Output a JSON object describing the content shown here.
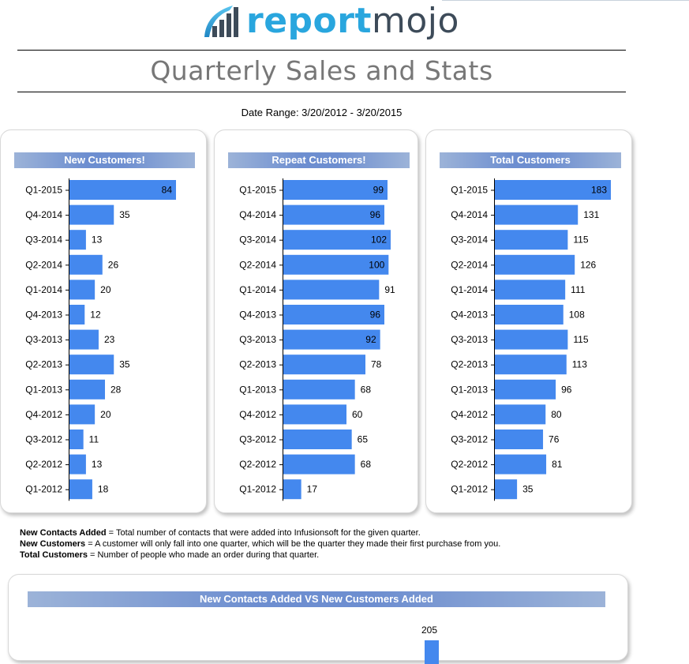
{
  "logo": {
    "text_report": "report",
    "text_mojo": "mojo",
    "brand_color": "#29a6de",
    "dark_color": "#3d4b59"
  },
  "page_title": "Quarterly Sales and Stats",
  "date_range": "Date Range:  3/20/2012 - 3/20/2015",
  "bar_color": "#4488ee",
  "chart_data": [
    {
      "type": "bar",
      "orientation": "horizontal",
      "title": "New Customers!",
      "categories": [
        "Q1-2015",
        "Q4-2014",
        "Q3-2014",
        "Q2-2014",
        "Q1-2014",
        "Q4-2013",
        "Q3-2013",
        "Q2-2013",
        "Q1-2013",
        "Q4-2012",
        "Q3-2012",
        "Q2-2012",
        "Q1-2012"
      ],
      "values": [
        84,
        35,
        13,
        26,
        20,
        12,
        23,
        35,
        28,
        20,
        11,
        13,
        18
      ],
      "xlim": [
        0,
        84
      ]
    },
    {
      "type": "bar",
      "orientation": "horizontal",
      "title": "Repeat Customers!",
      "categories": [
        "Q1-2015",
        "Q4-2014",
        "Q3-2014",
        "Q2-2014",
        "Q1-2014",
        "Q4-2013",
        "Q3-2013",
        "Q2-2013",
        "Q1-2013",
        "Q4-2012",
        "Q3-2012",
        "Q2-2012",
        "Q1-2012"
      ],
      "values": [
        99,
        96,
        102,
        100,
        91,
        96,
        92,
        78,
        68,
        60,
        65,
        68,
        17
      ],
      "xlim": [
        0,
        102
      ]
    },
    {
      "type": "bar",
      "orientation": "horizontal",
      "title": "Total Customers",
      "categories": [
        "Q1-2015",
        "Q4-2014",
        "Q3-2014",
        "Q2-2014",
        "Q1-2014",
        "Q4-2013",
        "Q3-2013",
        "Q2-2013",
        "Q1-2013",
        "Q4-2012",
        "Q3-2012",
        "Q2-2012",
        "Q1-2012"
      ],
      "values": [
        183,
        131,
        115,
        126,
        111,
        108,
        115,
        113,
        96,
        80,
        76,
        81,
        35
      ],
      "xlim": [
        0,
        183
      ]
    },
    {
      "type": "bar",
      "title": "New Contacts Added VS New Customers Added",
      "visible_values": [
        205
      ]
    }
  ],
  "notes": [
    {
      "term": "New Contacts Added",
      "text": " = Total number of contacts that were added into Infusionsoft for the given quarter."
    },
    {
      "term": "New Customers",
      "text": " = A customer will only fall into one quarter, which will be the quarter they made their first purchase from you."
    },
    {
      "term": "Total Customers",
      "text": " = Number of people who made an order during that quarter."
    }
  ]
}
